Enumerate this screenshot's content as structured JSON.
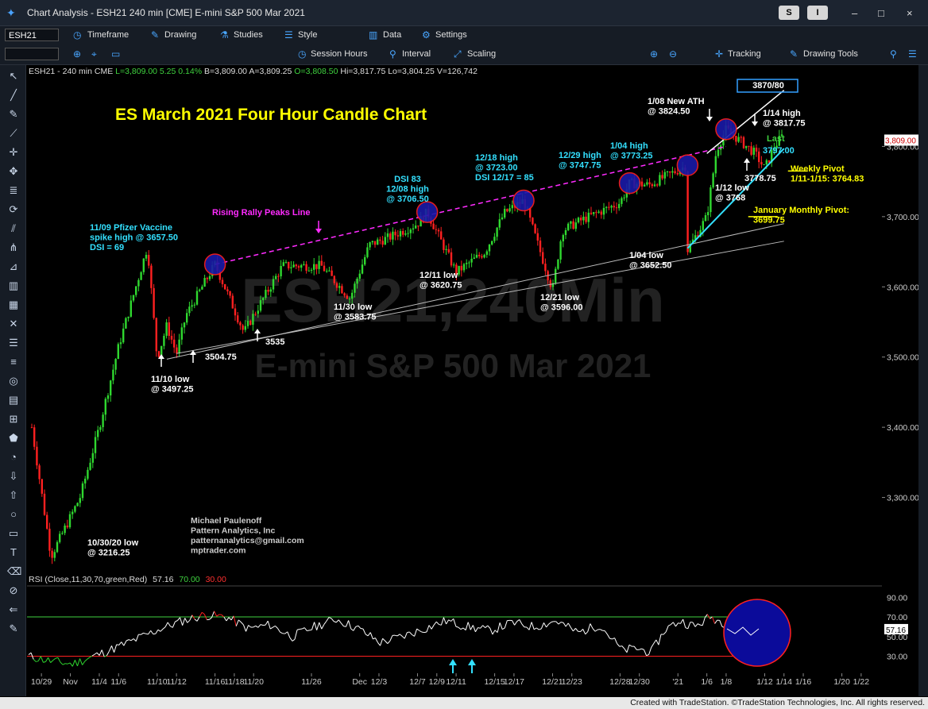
{
  "window": {
    "title": "Chart Analysis - ESH21 240 min [CME] E-mini S&P 500 Mar 2021",
    "s_button": "S",
    "i_button": "I",
    "minimize": "–",
    "maximize": "□",
    "close": "×"
  },
  "toolbar1": {
    "symbol": "ESH21",
    "timeframe": "Timeframe",
    "drawing": "Drawing",
    "studies": "Studies",
    "style": "Style",
    "data": "Data",
    "settings": "Settings"
  },
  "toolbar2": {
    "session_hours": "Session Hours",
    "interval": "Interval",
    "scaling": "Scaling",
    "tracking": "Tracking",
    "drawing_tools": "Drawing Tools"
  },
  "infobar": {
    "symbol": "ESH21 - 240 min",
    "exchange": "CME",
    "last": "L=3,809.00",
    "change": "5.25",
    "pct": "0.14%",
    "bid": "B=3,809.00",
    "ask": "A=3,809.25",
    "open": "O=3,808.50",
    "high": "Hi=3,817.75",
    "low": "Lo=3,804.25",
    "volume": "V=126,742"
  },
  "rsi_bar": {
    "label": "RSI (Close,11,30,70,green,Red)",
    "value": "57.16",
    "overbought": "70.00",
    "oversold": "30.00"
  },
  "footer": "Created with TradeStation. ©TradeStation Technologies, Inc. All rights reserved.",
  "chart_data": {
    "type": "candlestick",
    "title": "ES March 2021 Four Hour Candle Chart",
    "watermark": [
      "ESH21,240Min",
      "E-mini S&P 500 Mar 2021"
    ],
    "yticks": [
      "3,300.00",
      "3,400.00",
      "3,500.00",
      "3,600.00",
      "3,700.00",
      "3,800.00"
    ],
    "ylim": [
      3200,
      3900
    ],
    "last_price_label": "3,809.00",
    "xticks": [
      "10/29",
      "Nov",
      "11/4",
      "11/6",
      "11/10",
      "11/12",
      "11/16",
      "11/18",
      "11/20",
      "11/26",
      "Dec",
      "12/3",
      "12/7",
      "12/9",
      "12/11",
      "12/15",
      "12/17",
      "12/21",
      "12/23",
      "12/28",
      "12/30",
      "'21",
      "1/6",
      "1/8",
      "1/12",
      "1/14",
      "1/16",
      "1/20",
      "1/22"
    ],
    "price_path": [
      [
        "10/28",
        3400
      ],
      [
        "10/30",
        3216.25
      ],
      [
        "11/2",
        3300
      ],
      [
        "11/4",
        3400
      ],
      [
        "11/6",
        3515
      ],
      [
        "11/9",
        3657.5
      ],
      [
        "11/10",
        3497.25
      ],
      [
        "11/11",
        3545
      ],
      [
        "11/12",
        3504.75
      ],
      [
        "11/13",
        3560
      ],
      [
        "11/16",
        3632
      ],
      [
        "11/17",
        3600
      ],
      [
        "11/19",
        3535
      ],
      [
        "11/20",
        3560
      ],
      [
        "11/23",
        3630
      ],
      [
        "11/25",
        3630
      ],
      [
        "11/27",
        3630
      ],
      [
        "11/30",
        3583.75
      ],
      [
        "12/2",
        3660
      ],
      [
        "12/4",
        3670
      ],
      [
        "12/7",
        3690
      ],
      [
        "12/8",
        3706.5
      ],
      [
        "12/11",
        3620.75
      ],
      [
        "12/14",
        3650
      ],
      [
        "12/16",
        3705
      ],
      [
        "12/18",
        3723
      ],
      [
        "12/21",
        3596
      ],
      [
        "12/22",
        3680
      ],
      [
        "12/24",
        3695
      ],
      [
        "12/28",
        3720
      ],
      [
        "12/29",
        3747.75
      ],
      [
        "12/31",
        3745
      ],
      [
        "1/4",
        3773.25
      ],
      [
        "1/4",
        3652.5
      ],
      [
        "1/6",
        3700
      ],
      [
        "1/7",
        3795
      ],
      [
        "1/8",
        3824.5
      ],
      [
        "1/11",
        3790
      ],
      [
        "1/12",
        3768
      ],
      [
        "1/13",
        3800
      ],
      [
        "1/14",
        3817.75
      ],
      [
        "1/14",
        3809
      ]
    ],
    "annotations": [
      {
        "text": [
          "11/09 Pfizer Vaccine",
          "spike high @ 3657.50",
          "DSI = 69"
        ],
        "color": "#33e0ff"
      },
      {
        "text": [
          "Rising Rally Peaks Line"
        ],
        "color": "#ff2bff"
      },
      {
        "text": [
          "DSI 83",
          "12/08 high",
          "@ 3706.50"
        ],
        "color": "#33e0ff"
      },
      {
        "text": [
          "12/18 high",
          "@ 3723.00",
          "DSI 12/17 = 85"
        ],
        "color": "#33e0ff"
      },
      {
        "text": [
          "12/29 high",
          "@ 3747.75"
        ],
        "color": "#33e0ff"
      },
      {
        "text": [
          "1/04 high",
          "@ 3773.25"
        ],
        "color": "#33e0ff"
      },
      {
        "text": [
          "1/08 New ATH",
          "@ 3824.50"
        ],
        "color": "#ffffff"
      },
      {
        "text": [
          "3870/80"
        ],
        "color": "#ffffff"
      },
      {
        "text": [
          "1/14 high",
          "@ 3817.75"
        ],
        "color": "#ffffff"
      },
      {
        "text": [
          "Last"
        ],
        "color": "#3fd23f"
      },
      {
        "text": [
          "3797.00"
        ],
        "color": "#33e0ff"
      },
      {
        "text": [
          "3778.75"
        ],
        "color": "#ffffff"
      },
      {
        "text": [
          "Weekly Pivot",
          "1/11-1/15: 3764.83"
        ],
        "color": "#ffff00"
      },
      {
        "text": [
          "1/12 low",
          "@ 3768"
        ],
        "color": "#ffffff"
      },
      {
        "text": [
          "January Monthly Pivot:",
          "3699.75"
        ],
        "color": "#ffff00"
      },
      {
        "text": [
          "1/04 low",
          "@ 3652.50"
        ],
        "color": "#ffffff"
      },
      {
        "text": [
          "12/11 low",
          "@ 3620.75"
        ],
        "color": "#ffffff"
      },
      {
        "text": [
          "12/21 low",
          "@ 3596.00"
        ],
        "color": "#ffffff"
      },
      {
        "text": [
          "11/30 low",
          "@ 3583.75"
        ],
        "color": "#ffffff"
      },
      {
        "text": [
          "3535"
        ],
        "color": "#ffffff"
      },
      {
        "text": [
          "3504.75"
        ],
        "color": "#ffffff"
      },
      {
        "text": [
          "11/10 low",
          "@ 3497.25"
        ],
        "color": "#ffffff"
      },
      {
        "text": [
          "10/30/20 low",
          "@ 3216.25"
        ],
        "color": "#ffffff"
      },
      {
        "text": [
          "Michael Paulenoff",
          "Pattern Analytics, Inc",
          "patternanalytics@gmail.com",
          "mptrader.com"
        ],
        "color": "#cccccc"
      }
    ],
    "rsi": {
      "yticks": [
        "90.00",
        "70.00",
        "50.00",
        "30.00"
      ],
      "current_label": "57.16",
      "ylim": [
        15,
        100
      ],
      "path": [
        [
          0,
          30
        ],
        [
          3,
          25
        ],
        [
          6,
          22
        ],
        [
          10,
          33
        ],
        [
          14,
          45
        ],
        [
          18,
          58
        ],
        [
          21,
          66
        ],
        [
          24,
          72
        ],
        [
          27,
          70
        ],
        [
          30,
          58
        ],
        [
          33,
          62
        ],
        [
          36,
          50
        ],
        [
          39,
          60
        ],
        [
          42,
          68
        ],
        [
          45,
          58
        ],
        [
          48,
          44
        ],
        [
          51,
          50
        ],
        [
          54,
          58
        ],
        [
          57,
          66
        ],
        [
          60,
          60
        ],
        [
          63,
          56
        ],
        [
          66,
          64
        ],
        [
          69,
          60
        ],
        [
          72,
          66
        ],
        [
          75,
          54
        ],
        [
          78,
          62
        ],
        [
          81,
          36
        ],
        [
          83,
          38
        ],
        [
          85,
          34
        ],
        [
          87,
          58
        ],
        [
          89,
          66
        ],
        [
          91,
          60
        ],
        [
          93,
          70
        ],
        [
          95,
          64
        ],
        [
          97,
          57
        ]
      ]
    }
  }
}
